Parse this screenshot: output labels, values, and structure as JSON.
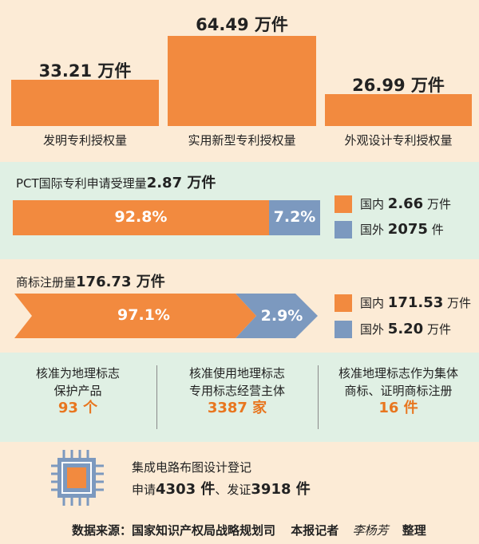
{
  "chart_data": [
    {
      "type": "bar",
      "categories": [
        "发明专利授权量",
        "实用新型专利授权量",
        "外观设计专利授权量"
      ],
      "values": [
        33.21,
        64.49,
        26.99
      ],
      "value_labels": [
        "33.21 万件",
        "64.49 万件",
        "26.99 万件"
      ],
      "colors": [
        "#f28a3f"
      ]
    },
    {
      "type": "bar",
      "title_prefix": "PCT国际专利申请受理量",
      "title_value": "2.87 万件",
      "series": [
        {
          "name": "国内",
          "percent": 92.8,
          "label": "92.8%",
          "amount_value": "2.66",
          "amount_unit": "万件"
        },
        {
          "name": "国外",
          "percent": 7.2,
          "label": "7.2%",
          "amount_value": "2075",
          "amount_unit": "件"
        }
      ],
      "colors": {
        "domestic": "#f28a3f",
        "foreign": "#7c99bf"
      }
    },
    {
      "type": "bar",
      "title_prefix": "商标注册量",
      "title_value": "176.73 万件",
      "series": [
        {
          "name": "国内",
          "percent": 97.1,
          "label": "97.1%",
          "amount_value": "171.53",
          "amount_unit": "万件"
        },
        {
          "name": "国外",
          "percent": 2.9,
          "label": "2.9%",
          "amount_value": "5.20",
          "amount_unit": "万件"
        }
      ]
    }
  ],
  "geo_stats": [
    {
      "line1": "核准为地理标志",
      "line2": "保护产品",
      "value": "93 个"
    },
    {
      "line1": "核准使用地理标志",
      "line2": "专用标志经营主体",
      "value": "3387 家"
    },
    {
      "line1": "核准地理标志作为集体",
      "line2": "商标、证明商标注册",
      "value": "16 件"
    }
  ],
  "ic_layout": {
    "icon": "chip-icon",
    "title": "集成电路布图设计登记",
    "prefix": "申请",
    "apply_value": "4303 件",
    "sep": "、发证",
    "issue_value": "3918 件"
  },
  "footer": {
    "source": "数据来源：国家知识产权局战略规划司",
    "reporter": "本报记者",
    "name": "李杨芳",
    "edit": "整理"
  }
}
